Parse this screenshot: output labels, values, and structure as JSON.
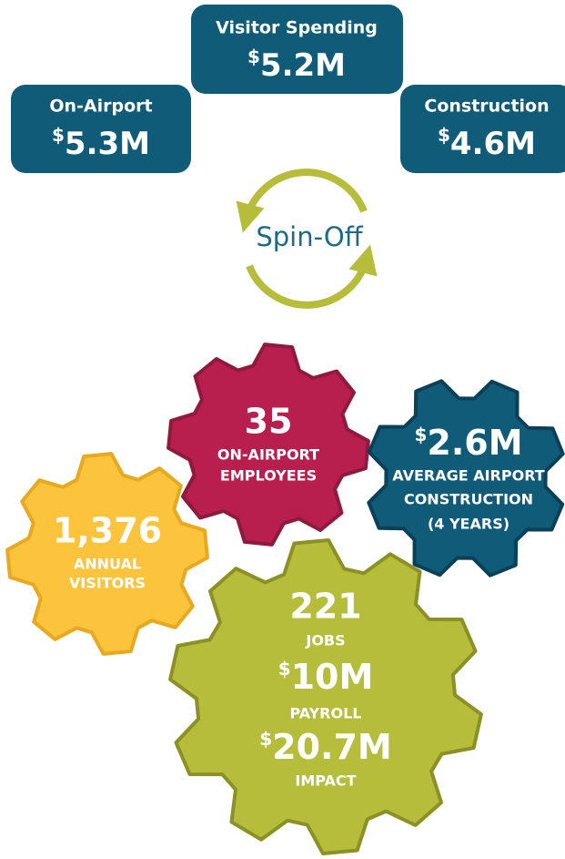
{
  "boxes": [
    {
      "label": "Visitor Spending",
      "value": "$5.2M"
    },
    {
      "label": "On-Airport",
      "value": "$5.3M"
    },
    {
      "label": "Construction",
      "value": "$4.6M"
    }
  ],
  "cycle_label": "Spin-Off",
  "gears": [
    {
      "value": "35",
      "label_lines": [
        "ON-AIRPORT",
        "EMPLOYEES"
      ]
    },
    {
      "value": "$2.6M",
      "label_lines": [
        "AVERAGE AIRPORT",
        "CONSTRUCTION",
        "(4 YEARS)"
      ]
    },
    {
      "value": "1,376",
      "label_lines": [
        "ANNUAL",
        "VISITORS"
      ]
    },
    {
      "items": [
        {
          "value": "221",
          "label": "JOBS"
        },
        {
          "value": "$10M",
          "label": "PAYROLL"
        },
        {
          "value": "$20.7M",
          "label": "IMPACT"
        }
      ]
    }
  ]
}
